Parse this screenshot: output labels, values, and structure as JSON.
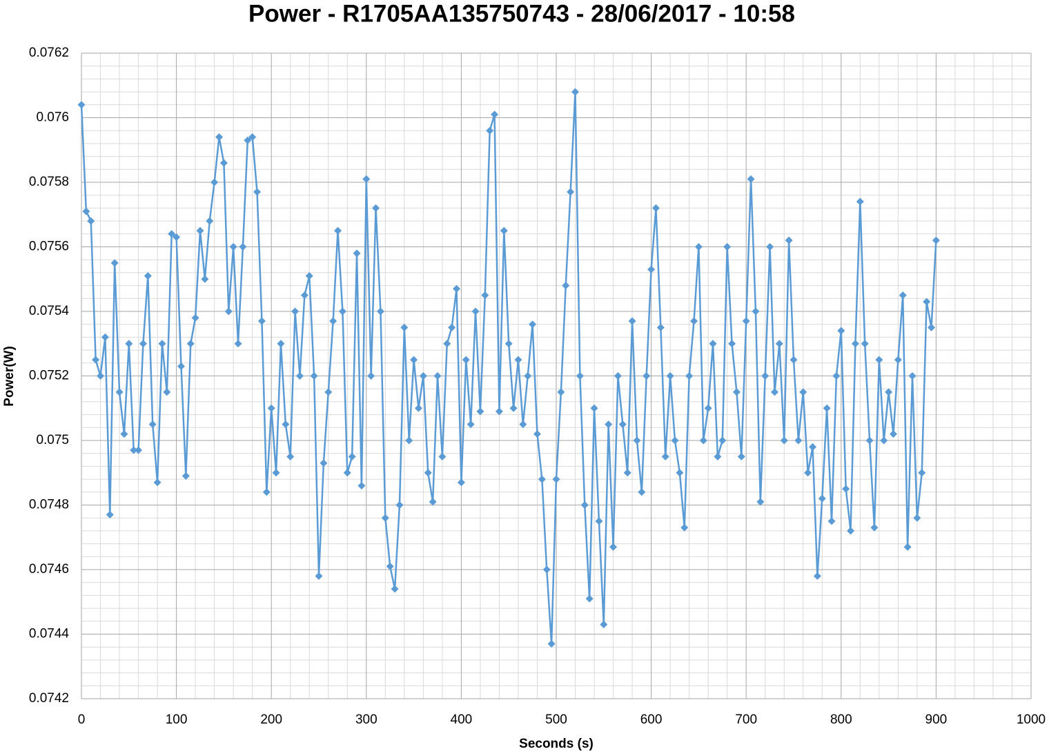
{
  "chart_data": {
    "type": "line",
    "title": "Power - R1705AA135750743 - 28/06/2017 - 10:58",
    "x_label": "Seconds (s)",
    "y_label": "Power(W)",
    "color": "#5b9bd5",
    "marker": "diamond",
    "grid": true,
    "minor_grid": 5,
    "xlim": [
      0,
      1000
    ],
    "xticks": [
      0,
      100,
      200,
      300,
      400,
      500,
      600,
      700,
      800,
      900,
      1000
    ],
    "ylim": [
      0.0742,
      0.0762
    ],
    "yticks": [
      0.0742,
      0.0744,
      0.0746,
      0.0748,
      0.075,
      0.0752,
      0.0754,
      0.0756,
      0.0758,
      0.076,
      0.0762
    ],
    "x": [
      0,
      5,
      10,
      15,
      20,
      25,
      30,
      35,
      40,
      45,
      50,
      55,
      60,
      65,
      70,
      75,
      80,
      85,
      90,
      95,
      100,
      105,
      110,
      115,
      120,
      125,
      130,
      135,
      140,
      145,
      150,
      155,
      160,
      165,
      170,
      175,
      180,
      185,
      190,
      195,
      200,
      205,
      210,
      215,
      220,
      225,
      230,
      235,
      240,
      245,
      250,
      255,
      260,
      265,
      270,
      275,
      280,
      285,
      290,
      295,
      300,
      305,
      310,
      315,
      320,
      325,
      330,
      335,
      340,
      345,
      350,
      355,
      360,
      365,
      370,
      375,
      380,
      385,
      390,
      395,
      400,
      405,
      410,
      415,
      420,
      425,
      430,
      435,
      440,
      445,
      450,
      455,
      460,
      465,
      470,
      475,
      480,
      485,
      490,
      495,
      500,
      505,
      510,
      515,
      520,
      525,
      530,
      535,
      540,
      545,
      550,
      555,
      560,
      565,
      570,
      575,
      580,
      585,
      590,
      595,
      600,
      605,
      610,
      615,
      620,
      625,
      630,
      635,
      640,
      645,
      650,
      655,
      660,
      665,
      670,
      675,
      680,
      685,
      690,
      695,
      700,
      705,
      710,
      715,
      720,
      725,
      730,
      735,
      740,
      745,
      750,
      755,
      760,
      765,
      770,
      775,
      780,
      785,
      790,
      795,
      800,
      805,
      810,
      815,
      820,
      825,
      830,
      835,
      840,
      845,
      850,
      855,
      860,
      865,
      870,
      875,
      880,
      885,
      890,
      895,
      900
    ],
    "values": [
      0.07604,
      0.07571,
      0.07568,
      0.07525,
      0.0752,
      0.07532,
      0.07477,
      0.07555,
      0.07515,
      0.07502,
      0.0753,
      0.07497,
      0.07497,
      0.0753,
      0.07551,
      0.07505,
      0.07487,
      0.0753,
      0.07515,
      0.07564,
      0.07563,
      0.07523,
      0.07489,
      0.0753,
      0.07538,
      0.07565,
      0.0755,
      0.07568,
      0.0758,
      0.07594,
      0.07586,
      0.0754,
      0.0756,
      0.0753,
      0.0756,
      0.07593,
      0.07594,
      0.07577,
      0.07537,
      0.07484,
      0.0751,
      0.0749,
      0.0753,
      0.07505,
      0.07495,
      0.0754,
      0.0752,
      0.07545,
      0.07551,
      0.0752,
      0.07458,
      0.07493,
      0.07515,
      0.07537,
      0.07565,
      0.0754,
      0.0749,
      0.07495,
      0.07558,
      0.07486,
      0.07581,
      0.0752,
      0.07572,
      0.0754,
      0.07476,
      0.07461,
      0.07454,
      0.0748,
      0.07535,
      0.075,
      0.07525,
      0.0751,
      0.0752,
      0.0749,
      0.07481,
      0.0752,
      0.07495,
      0.0753,
      0.07535,
      0.07547,
      0.07487,
      0.07525,
      0.07505,
      0.0754,
      0.07509,
      0.07545,
      0.07596,
      0.07601,
      0.07509,
      0.07565,
      0.0753,
      0.0751,
      0.07525,
      0.07505,
      0.0752,
      0.07536,
      0.07502,
      0.07488,
      0.0746,
      0.07437,
      0.07488,
      0.07515,
      0.07548,
      0.07577,
      0.07608,
      0.0752,
      0.0748,
      0.07451,
      0.0751,
      0.07475,
      0.07443,
      0.07505,
      0.07467,
      0.0752,
      0.07505,
      0.0749,
      0.07537,
      0.075,
      0.07484,
      0.0752,
      0.07553,
      0.07572,
      0.07535,
      0.07495,
      0.0752,
      0.075,
      0.0749,
      0.07473,
      0.0752,
      0.07537,
      0.0756,
      0.075,
      0.0751,
      0.0753,
      0.07495,
      0.075,
      0.0756,
      0.0753,
      0.07515,
      0.07495,
      0.07537,
      0.07581,
      0.0754,
      0.07481,
      0.0752,
      0.0756,
      0.07515,
      0.0753,
      0.075,
      0.07562,
      0.07525,
      0.075,
      0.07515,
      0.0749,
      0.07498,
      0.07458,
      0.07482,
      0.0751,
      0.07475,
      0.0752,
      0.07534,
      0.07485,
      0.07472,
      0.0753,
      0.07574,
      0.0753,
      0.075,
      0.07473,
      0.07525,
      0.075,
      0.07515,
      0.07502,
      0.07525,
      0.07545,
      0.07467,
      0.0752,
      0.07476,
      0.0749,
      0.07543,
      0.07535,
      0.07562
    ]
  }
}
